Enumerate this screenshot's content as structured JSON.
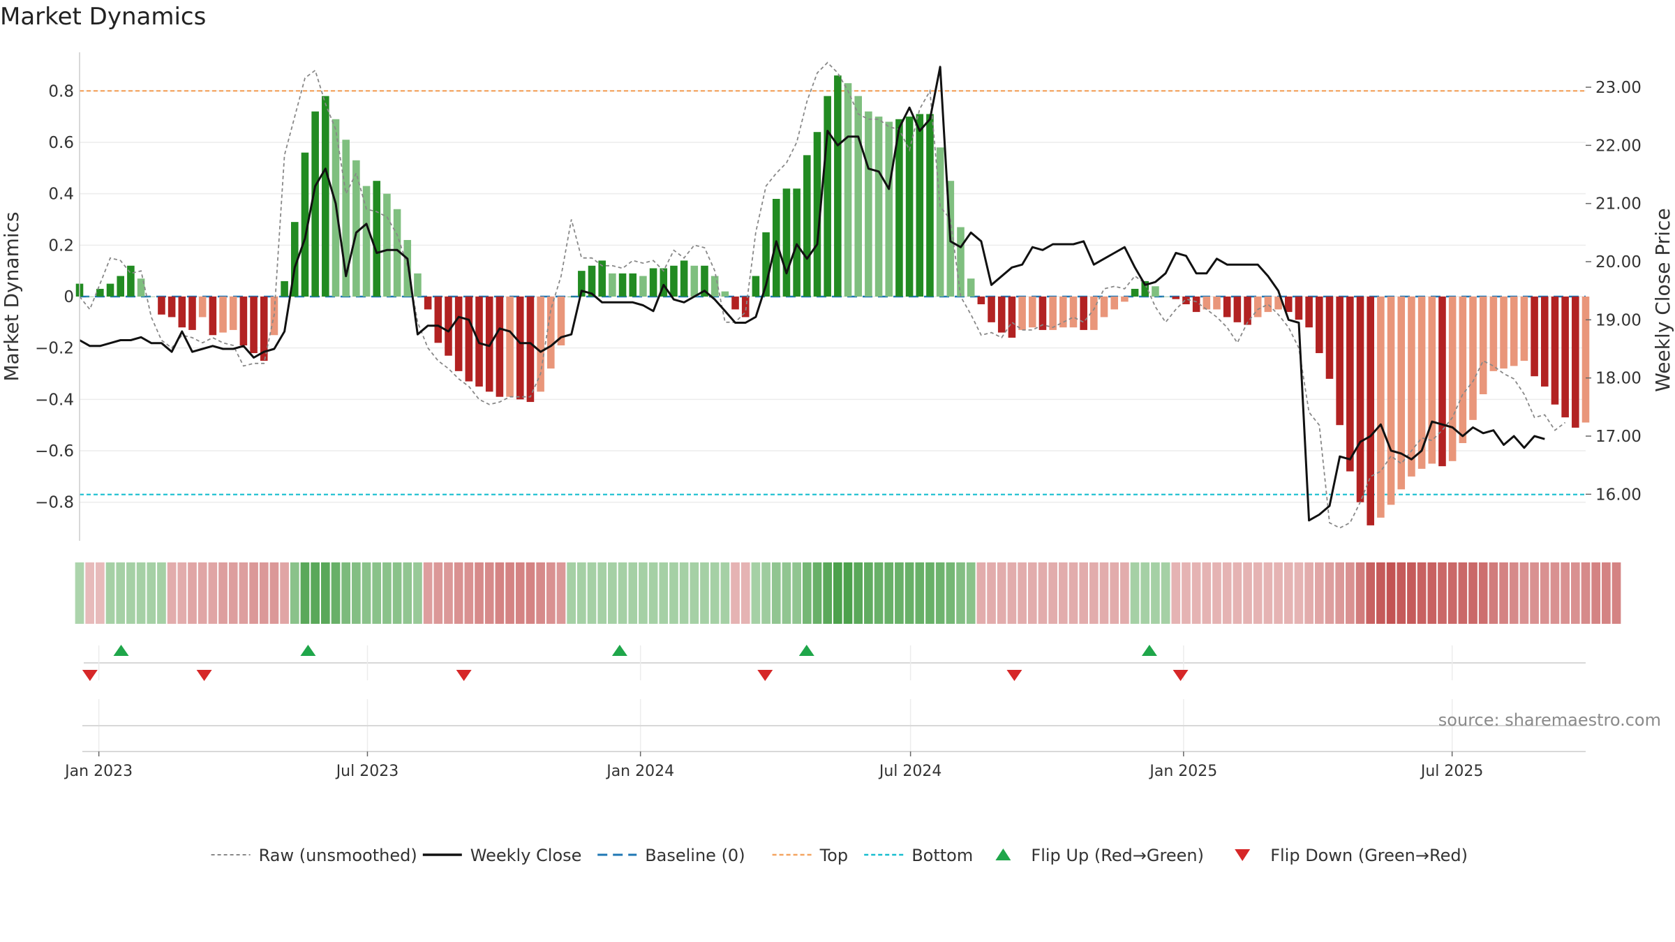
{
  "title": "Market Dynamics",
  "source": "source: sharemaestro.com",
  "colors": {
    "up_strong": "#228b22",
    "up_weak": "#7fbf7f",
    "down_strong": "#b22222",
    "down_weak": "#e9967a",
    "raw": "#888888",
    "close": "#111111",
    "baseline": "#1f77b4",
    "top": "#f4a460",
    "bottom": "#17becf",
    "flip_up": "#1fa64a",
    "flip_down": "#d62728"
  },
  "chart_data": {
    "type": "bar",
    "ylabel_left": "Market Dynamics",
    "ylabel_right": "Weekly Close Price",
    "ylim_left": [
      -0.95,
      0.95
    ],
    "ylim_right": [
      15.2,
      23.6
    ],
    "yticks_left": [
      0.8,
      0.6,
      0.4,
      0.2,
      0,
      -0.2,
      -0.4,
      -0.6,
      -0.8
    ],
    "ytick_labels_left": [
      "0.8",
      "0.6",
      "0.4",
      "0.2",
      "0",
      "−0.2",
      "−0.4",
      "−0.6",
      "−0.8"
    ],
    "yticks_right": [
      23,
      22,
      21,
      20,
      19,
      18,
      17,
      16
    ],
    "ytick_labels_right": [
      "23.00",
      "22.00",
      "21.00",
      "20.00",
      "19.00",
      "18.00",
      "17.00",
      "16.00"
    ],
    "top_level": 0.8,
    "bottom_level": -0.77,
    "baseline": 0,
    "date_range": [
      "2022-12-19",
      "2025-09-29"
    ],
    "xticks": [
      "2023-01-01",
      "2023-07-01",
      "2024-01-01",
      "2024-07-01",
      "2025-01-01",
      "2025-07-01"
    ],
    "xtick_labels": [
      "Jan 2023",
      "Jul 2023",
      "Jan 2024",
      "Jul 2024",
      "Jan 2025",
      "Jul 2025"
    ],
    "dynamics": [
      0.05,
      0.0,
      0.03,
      0.05,
      0.08,
      0.12,
      0.07,
      0.0,
      -0.07,
      -0.08,
      -0.12,
      -0.13,
      -0.08,
      -0.15,
      -0.14,
      -0.13,
      -0.19,
      -0.22,
      -0.25,
      -0.15,
      0.06,
      0.29,
      0.56,
      0.72,
      0.78,
      0.69,
      0.61,
      0.53,
      0.43,
      0.45,
      0.4,
      0.34,
      0.22,
      0.09,
      -0.05,
      -0.18,
      -0.23,
      -0.29,
      -0.33,
      -0.35,
      -0.37,
      -0.39,
      -0.39,
      -0.4,
      -0.41,
      -0.37,
      -0.28,
      -0.19,
      0.0,
      0.1,
      0.12,
      0.14,
      0.09,
      0.09,
      0.09,
      0.08,
      0.11,
      0.11,
      0.12,
      0.14,
      0.12,
      0.12,
      0.08,
      0.02,
      -0.05,
      -0.08,
      0.08,
      0.25,
      0.38,
      0.42,
      0.42,
      0.55,
      0.64,
      0.78,
      0.86,
      0.83,
      0.78,
      0.72,
      0.7,
      0.68,
      0.69,
      0.7,
      0.71,
      0.71,
      0.58,
      0.45,
      0.27,
      0.07,
      -0.03,
      -0.1,
      -0.14,
      -0.16,
      -0.13,
      -0.12,
      -0.13,
      -0.13,
      -0.12,
      -0.12,
      -0.13,
      -0.13,
      -0.08,
      -0.05,
      -0.02,
      0.03,
      0.06,
      0.04,
      0.0,
      -0.01,
      -0.03,
      -0.06,
      -0.05,
      -0.05,
      -0.08,
      -0.1,
      -0.11,
      -0.08,
      -0.06,
      -0.05,
      -0.06,
      -0.09,
      -0.12,
      -0.22,
      -0.32,
      -0.5,
      -0.68,
      -0.8,
      -0.89,
      -0.86,
      -0.81,
      -0.75,
      -0.7,
      -0.67,
      -0.65,
      -0.66,
      -0.64,
      -0.57,
      -0.48,
      -0.38,
      -0.29,
      -0.28,
      -0.27,
      -0.25,
      -0.31,
      -0.35,
      -0.42,
      -0.47,
      -0.51,
      -0.49
    ],
    "raw": [
      0.0,
      -0.05,
      0.05,
      0.15,
      0.14,
      0.09,
      0.1,
      -0.08,
      -0.17,
      -0.2,
      -0.15,
      -0.16,
      -0.18,
      -0.16,
      -0.18,
      -0.19,
      -0.27,
      -0.26,
      -0.26,
      -0.07,
      0.55,
      0.7,
      0.85,
      0.88,
      0.75,
      0.65,
      0.4,
      0.48,
      0.34,
      0.33,
      0.31,
      0.24,
      0.12,
      -0.1,
      -0.2,
      -0.25,
      -0.28,
      -0.32,
      -0.35,
      -0.4,
      -0.42,
      -0.41,
      -0.39,
      -0.39,
      -0.39,
      -0.3,
      -0.05,
      0.08,
      0.3,
      0.15,
      0.15,
      0.12,
      0.12,
      0.11,
      0.14,
      0.13,
      0.14,
      0.1,
      0.18,
      0.15,
      0.2,
      0.19,
      0.1,
      -0.1,
      -0.1,
      -0.06,
      0.25,
      0.43,
      0.48,
      0.52,
      0.6,
      0.76,
      0.87,
      0.91,
      0.87,
      0.8,
      0.71,
      0.69,
      0.69,
      0.66,
      0.65,
      0.57,
      0.73,
      0.8,
      0.35,
      0.3,
      0.0,
      -0.07,
      -0.15,
      -0.14,
      -0.16,
      -0.1,
      -0.13,
      -0.13,
      -0.11,
      -0.12,
      -0.1,
      -0.08,
      -0.1,
      -0.05,
      0.03,
      0.04,
      0.03,
      0.08,
      0.05,
      -0.04,
      -0.1,
      -0.05,
      -0.01,
      -0.02,
      -0.05,
      -0.08,
      -0.12,
      -0.18,
      -0.1,
      -0.05,
      -0.03,
      -0.07,
      -0.12,
      -0.2,
      -0.45,
      -0.5,
      -0.88,
      -0.9,
      -0.88,
      -0.8,
      -0.7,
      -0.68,
      -0.62,
      -0.65,
      -0.6,
      -0.55,
      -0.56,
      -0.52,
      -0.47,
      -0.38,
      -0.33,
      -0.25,
      -0.27,
      -0.3,
      -0.32,
      -0.38,
      -0.47,
      -0.46,
      -0.52,
      -0.49
    ],
    "close": [
      18.65,
      18.55,
      18.55,
      18.6,
      18.65,
      18.65,
      18.7,
      18.6,
      18.6,
      18.45,
      18.8,
      18.45,
      18.5,
      18.55,
      18.5,
      18.5,
      18.55,
      18.35,
      18.45,
      18.5,
      18.8,
      19.9,
      20.4,
      21.3,
      21.6,
      21.0,
      19.75,
      20.5,
      20.65,
      20.15,
      20.2,
      20.2,
      20.05,
      18.75,
      18.9,
      18.9,
      18.8,
      19.05,
      19.0,
      18.6,
      18.55,
      18.85,
      18.8,
      18.6,
      18.6,
      18.45,
      18.55,
      18.7,
      18.75,
      19.5,
      19.45,
      19.3,
      19.3,
      19.3,
      19.3,
      19.25,
      19.15,
      19.6,
      19.35,
      19.3,
      19.4,
      19.5,
      19.35,
      19.15,
      18.95,
      18.95,
      19.05,
      19.6,
      20.35,
      19.8,
      20.3,
      20.05,
      20.3,
      22.25,
      22.0,
      22.15,
      22.15,
      21.6,
      21.55,
      21.25,
      22.3,
      22.65,
      22.25,
      22.45,
      23.35,
      20.35,
      20.25,
      20.5,
      20.35,
      19.6,
      19.75,
      19.9,
      19.95,
      20.25,
      20.2,
      20.3,
      20.3,
      20.3,
      20.35,
      19.95,
      20.05,
      20.15,
      20.25,
      19.9,
      19.6,
      19.65,
      19.8,
      20.15,
      20.1,
      19.8,
      19.8,
      20.05,
      19.95,
      19.95,
      19.95,
      19.95,
      19.75,
      19.5,
      19.0,
      18.95,
      15.55,
      15.65,
      15.8,
      16.65,
      16.6,
      16.9,
      17.0,
      17.2,
      16.75,
      16.7,
      16.6,
      16.75,
      17.25,
      17.2,
      17.15,
      17.0,
      17.15,
      17.05,
      17.1,
      16.85,
      17.0,
      16.8,
      17.0,
      16.95
    ],
    "strip_intensity": [
      0.25,
      -0.15,
      -0.15,
      0.3,
      0.3,
      0.3,
      0.3,
      0.3,
      0.3,
      -0.25,
      -0.25,
      -0.3,
      -0.3,
      -0.3,
      -0.35,
      -0.35,
      -0.35,
      -0.4,
      -0.4,
      -0.4,
      -0.3,
      0.5,
      0.85,
      0.85,
      0.85,
      0.75,
      0.6,
      0.55,
      0.5,
      0.5,
      0.5,
      0.5,
      0.45,
      0.4,
      -0.35,
      -0.4,
      -0.4,
      -0.45,
      -0.45,
      -0.5,
      -0.5,
      -0.55,
      -0.55,
      -0.55,
      -0.55,
      -0.5,
      -0.45,
      -0.4,
      0.3,
      0.3,
      0.3,
      0.3,
      0.3,
      0.3,
      0.3,
      0.3,
      0.3,
      0.3,
      0.3,
      0.3,
      0.3,
      0.3,
      0.3,
      0.3,
      -0.2,
      -0.2,
      0.3,
      0.35,
      0.45,
      0.45,
      0.45,
      0.65,
      0.75,
      0.85,
      0.95,
      0.95,
      0.85,
      0.8,
      0.75,
      0.75,
      0.75,
      0.75,
      0.75,
      0.75,
      0.7,
      0.65,
      0.55,
      0.5,
      -0.25,
      -0.25,
      -0.25,
      -0.25,
      -0.25,
      -0.25,
      -0.25,
      -0.25,
      -0.25,
      -0.25,
      -0.25,
      -0.25,
      -0.25,
      -0.25,
      -0.25,
      0.3,
      0.3,
      0.3,
      0.3,
      -0.2,
      -0.2,
      -0.2,
      -0.2,
      -0.2,
      -0.2,
      -0.2,
      -0.2,
      -0.2,
      -0.2,
      -0.2,
      -0.2,
      -0.2,
      -0.25,
      -0.3,
      -0.35,
      -0.4,
      -0.45,
      -0.6,
      -0.8,
      -0.85,
      -0.9,
      -0.85,
      -0.85,
      -0.8,
      -0.8,
      -0.75,
      -0.75,
      -0.75,
      -0.75,
      -0.7,
      -0.6,
      -0.55,
      -0.5,
      -0.45,
      -0.45,
      -0.45,
      -0.45,
      -0.45,
      -0.45,
      -0.5,
      -0.55,
      -0.55,
      -0.55
    ],
    "flip_up_dates": [
      "2023-01-16",
      "2023-05-22",
      "2023-12-18",
      "2024-04-22",
      "2024-12-09"
    ],
    "flip_down_dates": [
      "2022-12-26",
      "2023-03-13",
      "2023-09-04",
      "2024-03-25",
      "2024-09-09",
      "2024-12-30"
    ],
    "legend": [
      {
        "label": "Raw (unsmoothed)",
        "style": "raw"
      },
      {
        "label": "Weekly Close",
        "style": "close"
      },
      {
        "label": "Baseline (0)",
        "style": "baseline"
      },
      {
        "label": "Top",
        "style": "top"
      },
      {
        "label": "Bottom",
        "style": "bottom"
      },
      {
        "label": "Flip Up (Red→Green)",
        "style": "flip_up"
      },
      {
        "label": "Flip Down (Green→Red)",
        "style": "flip_down"
      }
    ]
  }
}
